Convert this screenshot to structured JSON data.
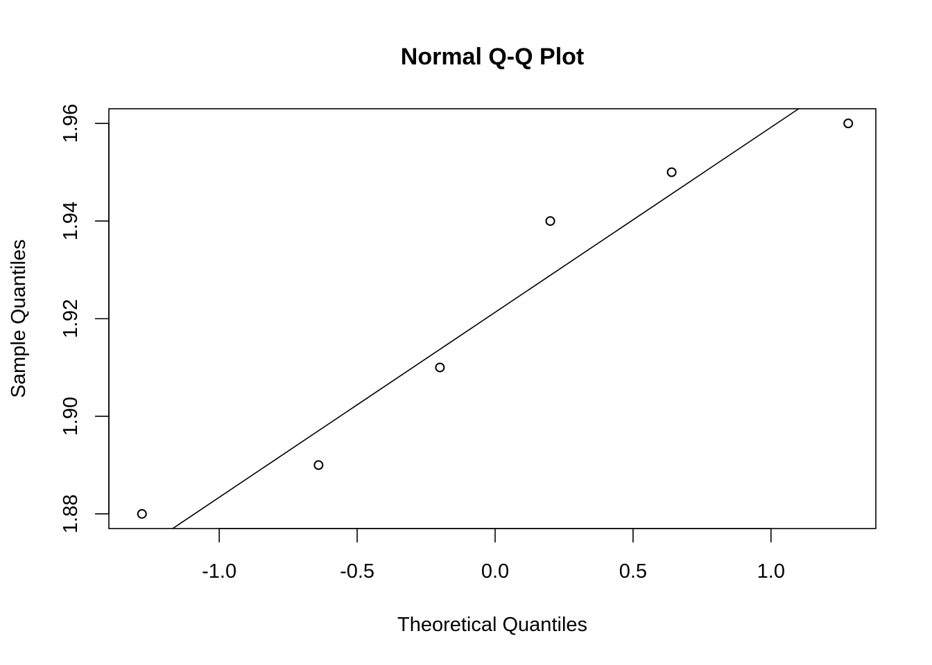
{
  "chart_data": {
    "type": "scatter",
    "title": "Normal Q-Q Plot",
    "xlabel": "Theoretical Quantiles",
    "ylabel": "Sample Quantiles",
    "xlim": [
      -1.4,
      1.38
    ],
    "ylim": [
      1.877,
      1.963
    ],
    "xticks": [
      -1.0,
      -0.5,
      0.0,
      0.5,
      1.0
    ],
    "xtick_labels": [
      "-1.0",
      "-0.5",
      "0.0",
      "0.5",
      "1.0"
    ],
    "yticks": [
      1.88,
      1.9,
      1.92,
      1.94,
      1.96
    ],
    "ytick_labels": [
      "1.88",
      "1.90",
      "1.92",
      "1.94",
      "1.96"
    ],
    "points": [
      {
        "x": -1.28,
        "y": 1.88
      },
      {
        "x": -0.64,
        "y": 1.89
      },
      {
        "x": -0.2,
        "y": 1.91
      },
      {
        "x": 0.2,
        "y": 1.94
      },
      {
        "x": 0.64,
        "y": 1.95
      },
      {
        "x": 1.28,
        "y": 1.96
      }
    ],
    "reference_line": {
      "intercept": 1.9213,
      "slope": 0.0379
    },
    "grid": false,
    "legend": "none"
  }
}
